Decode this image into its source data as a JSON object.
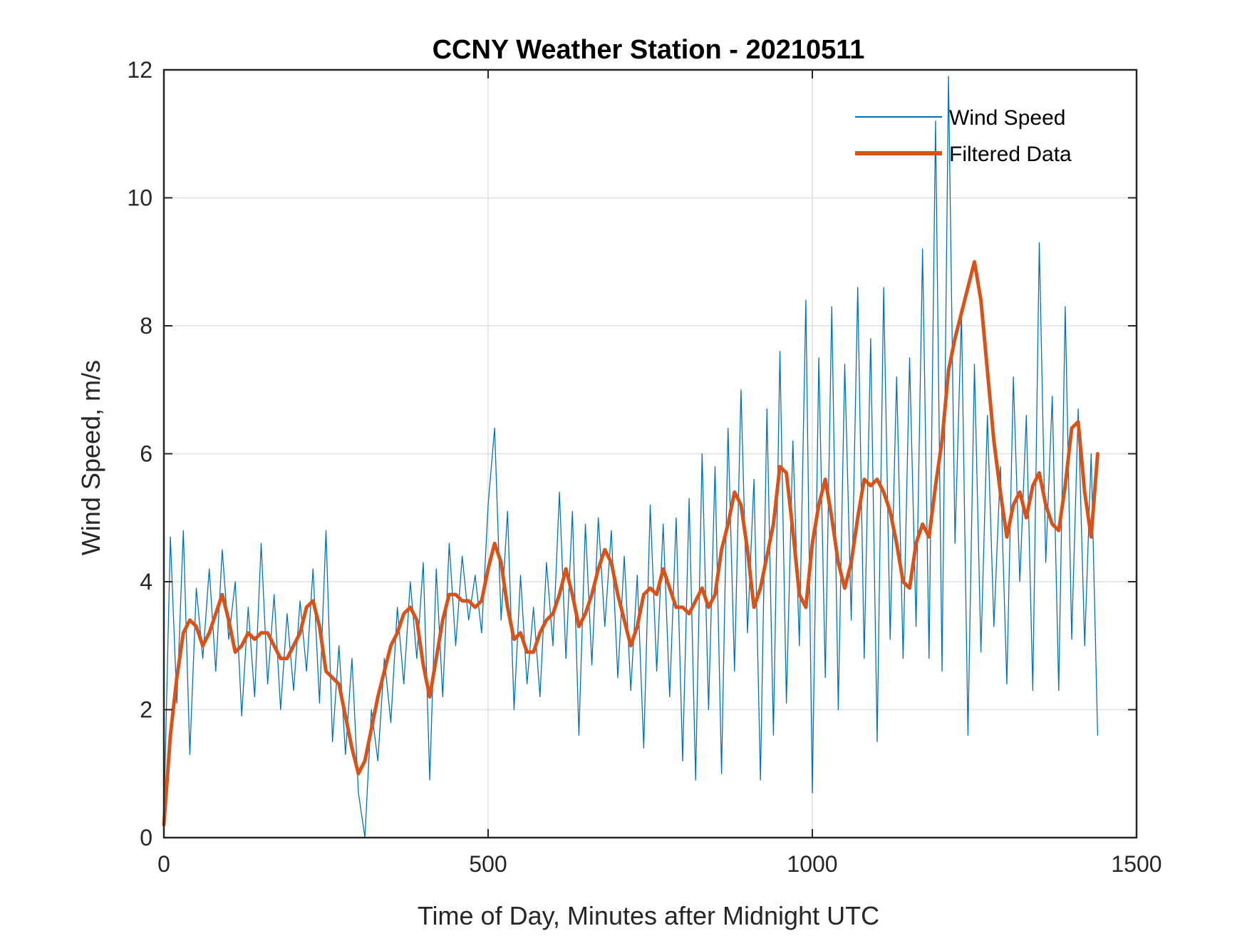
{
  "chart_data": {
    "type": "line",
    "title": "CCNY Weather Station - 20210511",
    "xlabel": "Time of Day, Minutes after Midnight UTC",
    "ylabel": "Wind Speed, m/s",
    "xlim": [
      0,
      1500
    ],
    "ylim": [
      0,
      12
    ],
    "xticks": [
      0,
      500,
      1000,
      1500
    ],
    "yticks": [
      0,
      2,
      4,
      6,
      8,
      10,
      12
    ],
    "xtick_labels": [
      "0",
      "500",
      "1000",
      "1500"
    ],
    "ytick_labels": [
      "0",
      "2",
      "4",
      "6",
      "8",
      "10",
      "12"
    ],
    "grid": true,
    "legend_position": "top-right",
    "legend": [
      "Wind Speed",
      "Filtered Data"
    ],
    "colors": {
      "wind": "#0072BD",
      "filtered": "#D95319",
      "grid": "#DFDFDF",
      "axis": "#262626"
    },
    "series": [
      {
        "name": "Wind Speed",
        "x": [
          0,
          10,
          20,
          30,
          40,
          50,
          60,
          70,
          80,
          90,
          100,
          110,
          120,
          130,
          140,
          150,
          160,
          170,
          180,
          190,
          200,
          210,
          220,
          230,
          240,
          250,
          260,
          270,
          280,
          290,
          300,
          310,
          320,
          330,
          340,
          350,
          360,
          370,
          380,
          390,
          400,
          410,
          420,
          430,
          440,
          450,
          460,
          470,
          480,
          490,
          500,
          510,
          520,
          530,
          540,
          550,
          560,
          570,
          580,
          590,
          600,
          610,
          620,
          630,
          640,
          650,
          660,
          670,
          680,
          690,
          700,
          710,
          720,
          730,
          740,
          750,
          760,
          770,
          780,
          790,
          800,
          810,
          820,
          830,
          840,
          850,
          860,
          870,
          880,
          890,
          900,
          910,
          920,
          930,
          940,
          950,
          960,
          970,
          980,
          990,
          1000,
          1010,
          1020,
          1030,
          1040,
          1050,
          1060,
          1070,
          1080,
          1090,
          1100,
          1110,
          1120,
          1130,
          1140,
          1150,
          1160,
          1170,
          1180,
          1190,
          1200,
          1210,
          1220,
          1230,
          1240,
          1250,
          1260,
          1270,
          1280,
          1290,
          1300,
          1310,
          1320,
          1330,
          1340,
          1350,
          1360,
          1370,
          1380,
          1390,
          1400,
          1410,
          1420,
          1430,
          1440
        ],
        "values": [
          0.3,
          4.7,
          2.1,
          4.8,
          1.3,
          3.9,
          2.8,
          4.2,
          2.6,
          4.5,
          3.1,
          4.0,
          1.9,
          3.6,
          2.2,
          4.6,
          2.4,
          3.8,
          2.0,
          3.5,
          2.3,
          3.7,
          2.6,
          4.2,
          2.1,
          4.8,
          1.5,
          3.0,
          1.3,
          2.8,
          0.7,
          0.0,
          2.0,
          1.2,
          2.8,
          1.8,
          3.6,
          2.4,
          4.0,
          2.8,
          4.3,
          0.9,
          4.2,
          2.2,
          4.6,
          3.0,
          4.4,
          3.4,
          4.1,
          3.2,
          5.2,
          6.4,
          3.4,
          5.1,
          2.0,
          4.1,
          2.4,
          3.6,
          2.2,
          4.3,
          3.0,
          5.4,
          2.8,
          5.1,
          1.6,
          4.9,
          2.7,
          5.0,
          3.3,
          4.8,
          2.5,
          4.4,
          2.3,
          4.1,
          1.4,
          5.2,
          2.6,
          4.9,
          2.2,
          5.0,
          1.2,
          5.3,
          0.9,
          6.0,
          2.0,
          5.8,
          1.0,
          6.4,
          2.6,
          7.0,
          3.2,
          5.6,
          0.9,
          6.7,
          1.6,
          7.6,
          2.1,
          6.2,
          3.0,
          8.4,
          0.7,
          7.5,
          2.5,
          8.3,
          2.0,
          7.4,
          3.4,
          8.6,
          2.8,
          7.8,
          1.5,
          8.6,
          3.1,
          7.2,
          2.8,
          7.5,
          3.3,
          9.2,
          2.8,
          11.2,
          2.6,
          11.9,
          4.6,
          8.2,
          1.6,
          7.4,
          2.9,
          6.6,
          3.3,
          5.8,
          2.4,
          7.2,
          4.0,
          6.6,
          2.3,
          9.3,
          4.3,
          6.9,
          2.3,
          8.3,
          3.1,
          6.7,
          3.0,
          6.0,
          1.6
        ],
        "color": "#0072BD"
      },
      {
        "name": "Filtered Data",
        "x": [
          0,
          10,
          20,
          30,
          40,
          50,
          60,
          70,
          80,
          90,
          100,
          110,
          120,
          130,
          140,
          150,
          160,
          170,
          180,
          190,
          200,
          210,
          220,
          230,
          240,
          250,
          260,
          270,
          280,
          290,
          300,
          310,
          320,
          330,
          340,
          350,
          360,
          370,
          380,
          390,
          400,
          410,
          420,
          430,
          440,
          450,
          460,
          470,
          480,
          490,
          500,
          510,
          520,
          530,
          540,
          550,
          560,
          570,
          580,
          590,
          600,
          610,
          620,
          630,
          640,
          650,
          660,
          670,
          680,
          690,
          700,
          710,
          720,
          730,
          740,
          750,
          760,
          770,
          780,
          790,
          800,
          810,
          820,
          830,
          840,
          850,
          860,
          870,
          880,
          890,
          900,
          910,
          920,
          930,
          940,
          950,
          960,
          970,
          980,
          990,
          1000,
          1010,
          1020,
          1030,
          1040,
          1050,
          1060,
          1070,
          1080,
          1090,
          1100,
          1110,
          1120,
          1130,
          1140,
          1150,
          1160,
          1170,
          1180,
          1190,
          1200,
          1210,
          1220,
          1230,
          1240,
          1250,
          1260,
          1270,
          1280,
          1290,
          1300,
          1310,
          1320,
          1330,
          1340,
          1350,
          1360,
          1370,
          1380,
          1390,
          1400,
          1410,
          1420,
          1430,
          1440
        ],
        "values": [
          0.2,
          1.6,
          2.5,
          3.2,
          3.4,
          3.3,
          3.0,
          3.2,
          3.5,
          3.8,
          3.4,
          2.9,
          3.0,
          3.2,
          3.1,
          3.2,
          3.2,
          3.0,
          2.8,
          2.8,
          3.0,
          3.2,
          3.6,
          3.7,
          3.3,
          2.6,
          2.5,
          2.4,
          1.9,
          1.4,
          1.0,
          1.2,
          1.7,
          2.2,
          2.6,
          3.0,
          3.2,
          3.5,
          3.6,
          3.4,
          2.7,
          2.2,
          2.8,
          3.4,
          3.8,
          3.8,
          3.7,
          3.7,
          3.6,
          3.7,
          4.2,
          4.6,
          4.3,
          3.6,
          3.1,
          3.2,
          2.9,
          2.9,
          3.2,
          3.4,
          3.5,
          3.8,
          4.2,
          3.8,
          3.3,
          3.5,
          3.8,
          4.2,
          4.5,
          4.3,
          3.8,
          3.4,
          3.0,
          3.3,
          3.8,
          3.9,
          3.8,
          4.2,
          3.9,
          3.6,
          3.6,
          3.5,
          3.7,
          3.9,
          3.6,
          3.8,
          4.5,
          4.9,
          5.4,
          5.2,
          4.5,
          3.6,
          3.9,
          4.4,
          4.9,
          5.8,
          5.7,
          4.8,
          3.8,
          3.6,
          4.6,
          5.2,
          5.6,
          5.0,
          4.3,
          3.9,
          4.3,
          5.0,
          5.6,
          5.5,
          5.6,
          5.4,
          5.1,
          4.6,
          4.0,
          3.9,
          4.6,
          4.9,
          4.7,
          5.5,
          6.2,
          7.3,
          7.8,
          8.2,
          8.6,
          9.0,
          8.4,
          7.3,
          6.2,
          5.4,
          4.7,
          5.2,
          5.4,
          5.0,
          5.5,
          5.7,
          5.2,
          4.9,
          4.8,
          5.5,
          6.4,
          6.5,
          5.4,
          4.7,
          6.0
        ],
        "color": "#D95319"
      }
    ]
  }
}
